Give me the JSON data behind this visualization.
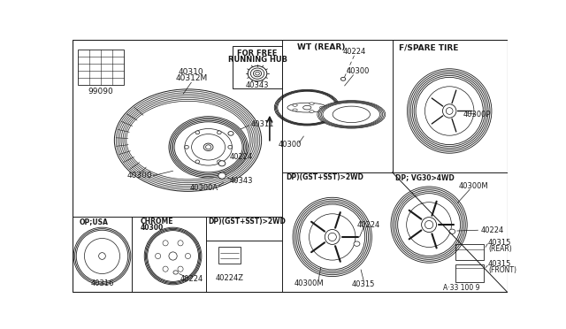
{
  "bg_color": "#ffffff",
  "line_color": "#1a1a1a",
  "text_color": "#1a1a1a",
  "border_lw": 0.8,
  "sections": {
    "s99090": {
      "label": "99090"
    },
    "main_tire": {
      "t1": "40310",
      "t2": "40312M",
      "b1": "40300",
      "b2": "40311",
      "b3": "40224",
      "b4": "40300A",
      "b5": "40343"
    },
    "free_hub": {
      "title1": "FOR FREE",
      "title2": "RUNNING HUB",
      "label": "40343"
    },
    "wt_rear": {
      "title": "WT (REAR)",
      "l1": "40224",
      "l2": "40300",
      "l3": "40300"
    },
    "spare": {
      "title": "F/SPARE TIRE",
      "label": "40300P"
    },
    "op_usa": {
      "title": "OP;USA",
      "label": "40316"
    },
    "chrome": {
      "title": "CHROME",
      "t2": "40300",
      "label": "40224"
    },
    "badge": {
      "title": "DP)(GST+SST)>2WD",
      "label": "40224Z"
    },
    "gst2wd": {
      "title": "DP)(GST+SST)>2WD",
      "l1": "40224",
      "l2": "40300M",
      "l3": "40315"
    },
    "vg4wd": {
      "title": "DP; VG30>4WD",
      "l1": "40300M",
      "l2": "40224",
      "l3": "40315\n(REAR)",
      "l4": "40315\n(FRONT)"
    },
    "ref": "A·33 100 9"
  }
}
